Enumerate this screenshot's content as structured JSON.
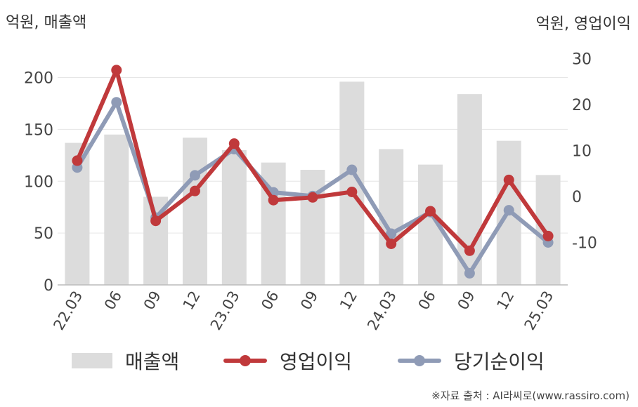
{
  "header": {
    "left_unit": "억원, 매출액",
    "right_unit": "억원, 영업이익"
  },
  "source": "※자료 출처 : AI라씨로(www.rassiro.com)",
  "colors": {
    "bar": "#dcdcdc",
    "operating_profit": "#c0393b",
    "net_income": "#8f9bb6",
    "axis": "#bbbbbb",
    "grid": "#e6e6e6"
  },
  "chart_data": {
    "type": "bar+line",
    "categories": [
      "22.03",
      "06",
      "09",
      "12",
      "23.03",
      "06",
      "09",
      "12",
      "24.03",
      "06",
      "09",
      "12",
      "25.03"
    ],
    "left_axis": {
      "label": "억원, 매출액",
      "ylim": [
        0,
        200
      ],
      "ticks": [
        0,
        50,
        100,
        150,
        200
      ]
    },
    "right_axis": {
      "label": "억원, 영업이익",
      "ylim": [
        -20,
        30
      ],
      "ticks": [
        -10,
        0,
        10,
        20,
        30
      ]
    },
    "grid": true,
    "legend_position": "bottom",
    "series": [
      {
        "name": "매출액",
        "kind": "bar",
        "axis": "left",
        "values": [
          137,
          145,
          85,
          142,
          130,
          118,
          111,
          196,
          131,
          116,
          184,
          139,
          106
        ]
      },
      {
        "name": "영업이익",
        "kind": "line",
        "axis": "right",
        "values": [
          7.8,
          27.5,
          -5.3,
          1.2,
          11.5,
          -0.8,
          -0.2,
          1.0,
          -10.3,
          -3.2,
          -11.8,
          3.6,
          -8.6
        ]
      },
      {
        "name": "당기순이익",
        "kind": "line",
        "axis": "right",
        "values": [
          6.3,
          20.5,
          -4.6,
          4.6,
          10.3,
          0.9,
          0.1,
          5.8,
          -8.1,
          -3.4,
          -16.7,
          -3.0,
          -10.0
        ]
      }
    ]
  }
}
